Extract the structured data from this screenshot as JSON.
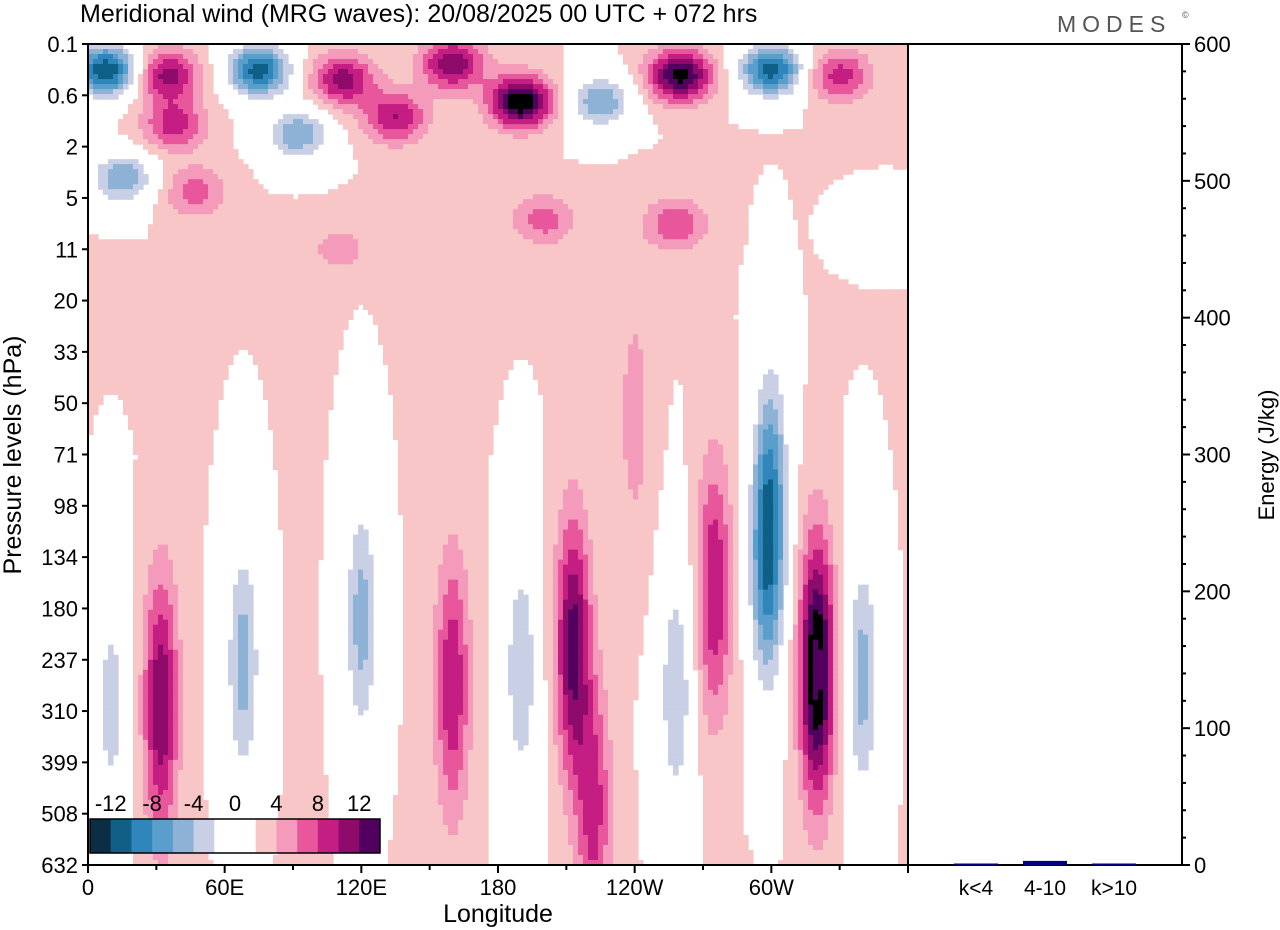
{
  "chart_data": {
    "type": "heatmap",
    "title": "Meridional wind (MRG waves):  20/08/2025  00 UTC  + 072 hrs",
    "brand": "MODES",
    "brand_mark": "©",
    "xlabel": "Longitude",
    "ylabel": "Pressure levels (hPa)",
    "x_ticks": [
      "0",
      "60E",
      "120E",
      "180",
      "120W",
      "60W"
    ],
    "x_range": [
      0,
      360
    ],
    "y_ticks": [
      "0.1",
      "0.6",
      "2",
      "5",
      "11",
      "20",
      "33",
      "50",
      "71",
      "98",
      "134",
      "180",
      "237",
      "310",
      "399",
      "508",
      "632"
    ],
    "colorbar": {
      "labels": [
        "-12",
        "-8",
        "-4",
        "0",
        "4",
        "8",
        "12"
      ],
      "levels": [
        -14,
        -12,
        -10,
        -8,
        -6,
        -4,
        -2,
        0,
        2,
        4,
        6,
        8,
        10,
        12,
        14
      ],
      "colors": [
        "#0b2e45",
        "#0f5f86",
        "#2f86ba",
        "#5a9ecb",
        "#8db2d6",
        "#c9cfe4",
        "#ffffff",
        "#ffffff",
        "#f8c6c6",
        "#f49bbb",
        "#e8579c",
        "#c41e83",
        "#8e0b6c",
        "#520060"
      ]
    },
    "features": [
      {
        "lon": 8,
        "p": 0.25,
        "v": -14
      },
      {
        "lon": 35,
        "p": 0.3,
        "v": 9
      },
      {
        "lon": 38,
        "p": 1.2,
        "v": 7
      },
      {
        "lon": 75,
        "p": 0.25,
        "v": -13
      },
      {
        "lon": 92,
        "p": 1.5,
        "v": -8
      },
      {
        "lon": 112,
        "p": 0.35,
        "v": 9
      },
      {
        "lon": 135,
        "p": 1.0,
        "v": 8
      },
      {
        "lon": 160,
        "p": 0.2,
        "v": 10
      },
      {
        "lon": 190,
        "p": 0.7,
        "v": 14
      },
      {
        "lon": 225,
        "p": 0.7,
        "v": -8
      },
      {
        "lon": 260,
        "p": 0.3,
        "v": 13
      },
      {
        "lon": 300,
        "p": 0.25,
        "v": -13
      },
      {
        "lon": 330,
        "p": 0.3,
        "v": 7
      },
      {
        "lon": 15,
        "p": 3.5,
        "v": -8
      },
      {
        "lon": 47,
        "p": 4.5,
        "v": 5
      },
      {
        "lon": 200,
        "p": 7,
        "v": 5
      },
      {
        "lon": 258,
        "p": 7.5,
        "v": 6
      },
      {
        "lon": 350,
        "p": 8,
        "v": -4
      },
      {
        "lon": 110,
        "p": 11,
        "v": 3
      },
      {
        "lon": 240,
        "p": 55,
        "v": 3
      },
      {
        "lon": 300,
        "p": 80,
        "v": -6
      },
      {
        "lon": 32,
        "p": 300,
        "v": 10
      },
      {
        "lon": 68,
        "p": 240,
        "v": -7
      },
      {
        "lon": 120,
        "p": 190,
        "v": -7
      },
      {
        "lon": 160,
        "p": 270,
        "v": 8
      },
      {
        "lon": 190,
        "p": 250,
        "v": -6
      },
      {
        "lon": 213,
        "p": 220,
        "v": 11
      },
      {
        "lon": 258,
        "p": 280,
        "v": -6
      },
      {
        "lon": 275,
        "p": 160,
        "v": 8
      },
      {
        "lon": 298,
        "p": 140,
        "v": -10
      },
      {
        "lon": 320,
        "p": 250,
        "v": 15
      },
      {
        "lon": 340,
        "p": 260,
        "v": -7
      },
      {
        "lon": 222,
        "p": 500,
        "v": 7
      },
      {
        "lon": 10,
        "p": 300,
        "v": -5
      }
    ],
    "energy_axis": {
      "label": "Energy (J/kg)",
      "range": [
        0,
        600
      ],
      "ticks": [
        "0",
        "100",
        "200",
        "300",
        "400",
        "500",
        "600"
      ]
    },
    "energy_bars": {
      "categories": [
        "k<4",
        "4-10",
        "k>10"
      ],
      "values": [
        0.5,
        3,
        0.5
      ],
      "colors": [
        "#000080",
        "#000080",
        "#000080"
      ]
    }
  }
}
